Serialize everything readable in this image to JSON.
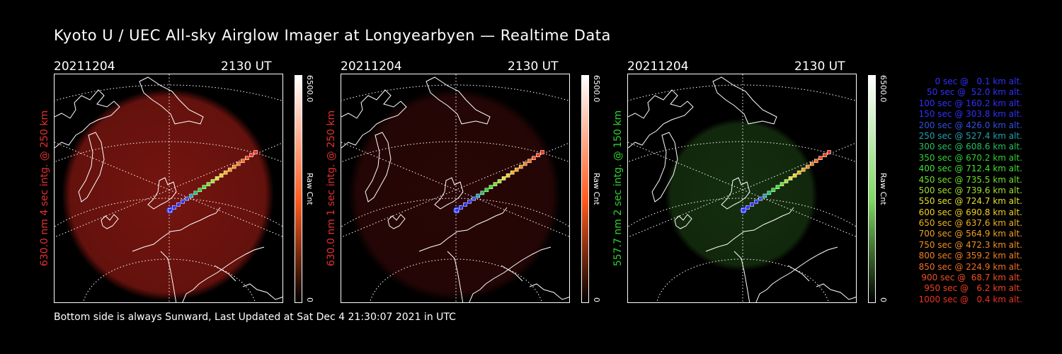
{
  "title": "Kyoto U / UEC All-sky Airglow Imager at Longyearbyen — Realtime Data",
  "footer": "Bottom side is always Sunward, Last Updated at Sat Dec  4 21:30:07 2021 in UTC",
  "panels": [
    {
      "date": "20211204",
      "time": "2130 UT",
      "side_label": "630.0 nm 4 sec intg. @ 250 km",
      "label_color": "#e33030",
      "colorbar_max": "6500.0",
      "colorbar_min": "0",
      "colorbar_unit": "Raw Cnt",
      "glow_color": "#8a1812",
      "glow_opacity": 0.85,
      "bar_color": "#ff5a1e"
    },
    {
      "date": "20211204",
      "time": "2130 UT",
      "side_label": "630.0 nm 1 sec intg. @ 250 km",
      "label_color": "#e33030",
      "colorbar_max": "6500.0",
      "colorbar_min": "0",
      "colorbar_unit": "Raw Cnt",
      "glow_color": "#3a0a08",
      "glow_opacity": 0.7,
      "bar_color": "#ff5a1e"
    },
    {
      "date": "20211204",
      "time": "2130 UT",
      "side_label": "557.7 nm 2 sec intg. @ 150 km",
      "label_color": "#30d030",
      "colorbar_max": "6500.0",
      "colorbar_min": "0",
      "colorbar_unit": "Raw Cnt",
      "glow_color": "#1a3a12",
      "glow_opacity": 0.8,
      "bar_color": "#7dd860"
    }
  ],
  "legend": [
    {
      "text": "0 sec @   0.1 km alt.",
      "color": "#3030ff"
    },
    {
      "text": "50 sec @  52.0 km alt.",
      "color": "#3030ff"
    },
    {
      "text": "100 sec @ 160.2 km alt.",
      "color": "#3030ff"
    },
    {
      "text": "150 sec @ 303.8 km alt.",
      "color": "#3030ff"
    },
    {
      "text": "200 sec @ 426.0 km alt.",
      "color": "#3050e0"
    },
    {
      "text": "250 sec @ 527.4 km alt.",
      "color": "#20a0b0"
    },
    {
      "text": "300 sec @ 608.6 km alt.",
      "color": "#20c060"
    },
    {
      "text": "350 sec @ 670.2 km alt.",
      "color": "#30d030"
    },
    {
      "text": "400 sec @ 712.4 km alt.",
      "color": "#40e030"
    },
    {
      "text": "450 sec @ 735.5 km alt.",
      "color": "#70e030"
    },
    {
      "text": "500 sec @ 739.6 km alt.",
      "color": "#a0e030"
    },
    {
      "text": "550 sec @ 724.7 km alt.",
      "color": "#e0e030"
    },
    {
      "text": "600 sec @ 690.8 km alt.",
      "color": "#f0d020"
    },
    {
      "text": "650 sec @ 637.6 km alt.",
      "color": "#f0b020"
    },
    {
      "text": "700 sec @ 564.9 km alt.",
      "color": "#f0a020"
    },
    {
      "text": "750 sec @ 472.3 km alt.",
      "color": "#f09020"
    },
    {
      "text": "800 sec @ 359.2 km alt.",
      "color": "#f08020"
    },
    {
      "text": "850 sec @ 224.9 km alt.",
      "color": "#f07020"
    },
    {
      "text": "900 sec @  68.7 km alt.",
      "color": "#f05020"
    },
    {
      "text": "950 sec @   6.2 km alt.",
      "color": "#f04020"
    },
    {
      "text": "1000 sec @   0.4 km alt.",
      "color": "#f03020"
    }
  ]
}
